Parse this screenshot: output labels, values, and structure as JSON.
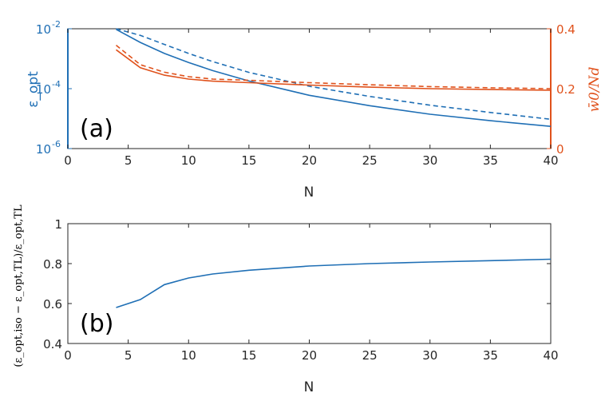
{
  "colors": {
    "blue": "#1f6fb5",
    "orange": "#e0521c",
    "axis": "#262626"
  },
  "chart_data": [
    {
      "type": "line",
      "panel_label": "(a)",
      "xlabel": "N",
      "ylabel_left": "ε_opt",
      "ylabel_right": "w̄0/Nd",
      "xlim": [
        0,
        40
      ],
      "ylim_left": [
        1e-06,
        0.01
      ],
      "yscale_left": "log",
      "ylim_right": [
        0,
        0.4
      ],
      "x_ticks": [
        "0",
        "5",
        "10",
        "15",
        "20",
        "25",
        "30",
        "35",
        "40"
      ],
      "y_ticks_left": [
        {
          "base": "10",
          "exp": "-2"
        },
        {
          "base": "10",
          "exp": "-4"
        },
        {
          "base": "10",
          "exp": "-6"
        }
      ],
      "y_ticks_right": [
        "0.4",
        "0.2",
        "0"
      ],
      "series": [
        {
          "axis": "left",
          "color": "blue",
          "style": "solid",
          "x": [
            4,
            6,
            8,
            10,
            12,
            15,
            20,
            25,
            30,
            35,
            40
          ],
          "y": [
            0.0095,
            0.0035,
            0.0015,
            0.00075,
            0.0004,
            0.00018,
            6e-05,
            2.7e-05,
            1.4e-05,
            8.5e-06,
            5.5e-06
          ]
        },
        {
          "axis": "left",
          "color": "blue",
          "style": "dashed",
          "x": [
            4,
            6,
            8,
            10,
            12,
            15,
            20,
            25,
            30,
            35,
            40
          ],
          "y": [
            0.01,
            0.006,
            0.003,
            0.0015,
            0.0008,
            0.00035,
            0.00012,
            5.5e-05,
            2.8e-05,
            1.6e-05,
            9.5e-06
          ]
        },
        {
          "axis": "right",
          "color": "orange",
          "style": "solid",
          "x": [
            4,
            6,
            8,
            10,
            12,
            15,
            20,
            25,
            30,
            35,
            40
          ],
          "y": [
            0.33,
            0.27,
            0.245,
            0.232,
            0.225,
            0.22,
            0.212,
            0.205,
            0.2,
            0.197,
            0.195
          ]
        },
        {
          "axis": "right",
          "color": "orange",
          "style": "dashed",
          "x": [
            4,
            6,
            8,
            10,
            12,
            15,
            20,
            25,
            30,
            35,
            40
          ],
          "y": [
            0.345,
            0.28,
            0.255,
            0.24,
            0.232,
            0.228,
            0.22,
            0.213,
            0.207,
            0.203,
            0.2
          ]
        }
      ]
    },
    {
      "type": "line",
      "panel_label": "(b)",
      "xlabel": "N",
      "ylabel": "(ε_opt,iso − ε_opt,TL)/ε_opt,TL",
      "xlim": [
        0,
        40
      ],
      "ylim": [
        0.4,
        1
      ],
      "x_ticks": [
        "0",
        "5",
        "10",
        "15",
        "20",
        "25",
        "30",
        "35",
        "40"
      ],
      "y_ticks": [
        "1",
        "0.8",
        "0.6",
        "0.4"
      ],
      "series": [
        {
          "axis": "left",
          "color": "blue",
          "style": "solid",
          "x": [
            4,
            6,
            8,
            10,
            12,
            15,
            20,
            25,
            30,
            35,
            40
          ],
          "y": [
            0.58,
            0.62,
            0.695,
            0.728,
            0.748,
            0.767,
            0.788,
            0.8,
            0.808,
            0.815,
            0.822
          ]
        }
      ]
    }
  ]
}
